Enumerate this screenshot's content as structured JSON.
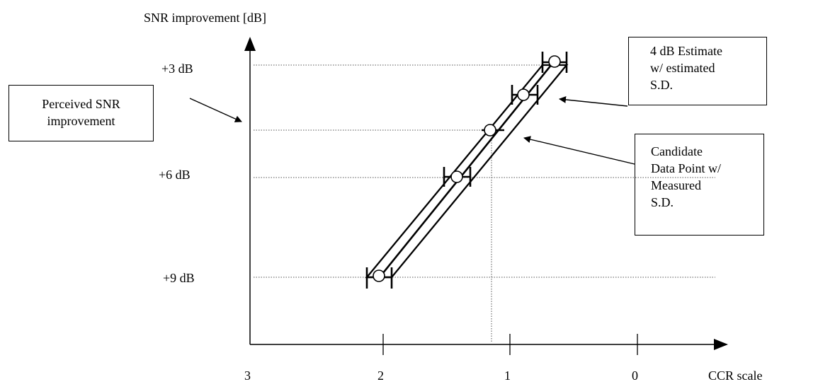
{
  "y_axis_title": "SNR improvement [dB]",
  "x_axis_title": "CCR scale",
  "y_tick_labels": [
    "+3 dB",
    "+6 dB",
    "+9 dB"
  ],
  "x_tick_labels": [
    "3",
    "2",
    "1",
    "0"
  ],
  "callouts": {
    "perceived": [
      "Perceived SNR",
      "improvement"
    ],
    "estimate": [
      "4 dB Estimate",
      "w/ estimated",
      "S.D."
    ],
    "candidate": [
      "Candidate",
      "Data Point w/",
      "Measured",
      "S.D."
    ]
  },
  "chart_data": {
    "type": "scatter",
    "xlabel": "CCR scale",
    "ylabel": "SNR improvement [dB]",
    "x_ticks": [
      3,
      2,
      1,
      0
    ],
    "y_ticks": [
      "+3 dB",
      "+6 dB",
      "+9 dB"
    ],
    "points": [
      {
        "x": 2.03,
        "y": 9.0
      },
      {
        "x": 1.42,
        "y": 6.0
      },
      {
        "x": 1.15,
        "y": 4.5
      },
      {
        "x": 0.9,
        "y": 3.8
      },
      {
        "x": 0.65,
        "y": 3.1
      }
    ],
    "annotations": [
      "Perceived SNR improvement",
      "4 dB Estimate w/ estimated S.D.",
      "Candidate Data Point w/ Measured S.D."
    ]
  }
}
